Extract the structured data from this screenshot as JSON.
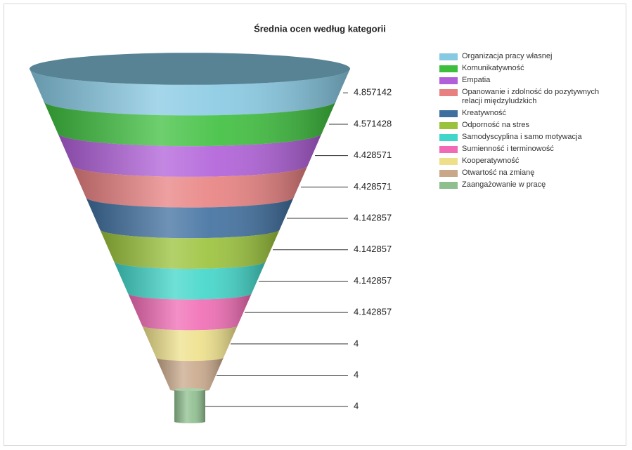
{
  "chart_data": {
    "type": "funnel",
    "title": "Średnia ocen według kategorii",
    "categories": [
      "Organizacja pracy własnej",
      "Komunikatywność",
      "Empatia",
      "Opanowanie i zdolność do pozytywnych relacji międzyludzkich",
      "Kreatywność",
      "Odporność na stres",
      "Samodyscyplina i samo motywacja",
      "Sumienność i terminowość",
      "Kooperatywność",
      "Otwartość na zmianę",
      "Zaangażowanie w pracę"
    ],
    "values": [
      4.857142,
      4.571428,
      4.428571,
      4.428571,
      4.142857,
      4.142857,
      4.142857,
      4.142857,
      4,
      4,
      4
    ],
    "colors": [
      "#87c9e3",
      "#3dbf3d",
      "#b05fd9",
      "#e88080",
      "#3f6f9f",
      "#9ac23a",
      "#40d6c9",
      "#f06bb4",
      "#eee08a",
      "#c9a88a",
      "#8fbf8f"
    ],
    "legend": "right"
  }
}
